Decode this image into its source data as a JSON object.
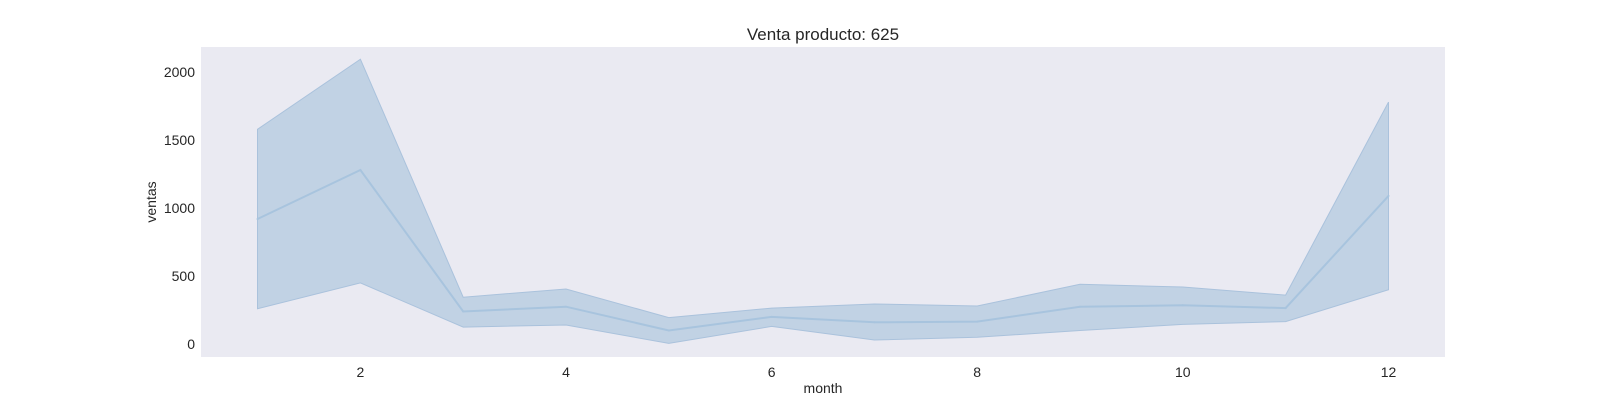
{
  "chart_data": {
    "type": "line",
    "title": "Venta producto: 625",
    "xlabel": "month",
    "ylabel": "ventas",
    "x": [
      1,
      2,
      3,
      4,
      5,
      6,
      7,
      8,
      9,
      10,
      11,
      12
    ],
    "xlim": [
      0.45,
      12.55
    ],
    "ylim": [
      -95,
      2185
    ],
    "xticks": [
      2,
      4,
      6,
      8,
      10,
      12
    ],
    "yticks": [
      0,
      500,
      1000,
      1500,
      2000
    ],
    "grid": false,
    "legend": "none",
    "colors": {
      "plot_background": "#eaeaf2",
      "line": "#a8c4de",
      "band_fill": "#c1d2e4",
      "band_edge": "#aac2dc"
    },
    "series": [
      {
        "values": [
          920,
          1280,
          240,
          275,
          100,
          200,
          160,
          165,
          275,
          285,
          265,
          1090
        ],
        "lower": [
          260,
          450,
          125,
          140,
          5,
          130,
          30,
          50,
          100,
          145,
          165,
          400
        ],
        "upper": [
          1580,
          2095,
          345,
          405,
          195,
          265,
          295,
          280,
          440,
          420,
          360,
          1780
        ]
      }
    ]
  }
}
